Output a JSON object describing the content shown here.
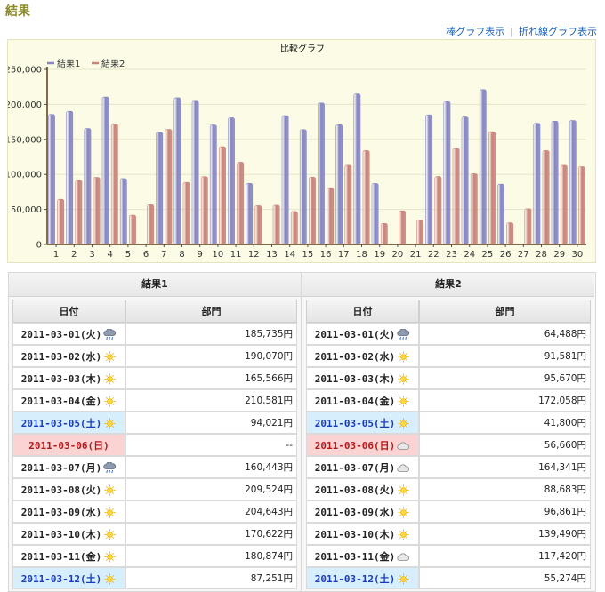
{
  "page": {
    "title": "結果"
  },
  "links": {
    "bar": "棒グラフ表示",
    "separator": "|",
    "line": "折れ線グラフ表示"
  },
  "chart_data": {
    "type": "bar",
    "title": "比較グラフ",
    "categories": [
      "1",
      "2",
      "3",
      "4",
      "5",
      "6",
      "7",
      "8",
      "9",
      "10",
      "11",
      "12",
      "13",
      "14",
      "15",
      "16",
      "17",
      "18",
      "19",
      "20",
      "21",
      "22",
      "23",
      "24",
      "25",
      "26",
      "27",
      "28",
      "29",
      "30"
    ],
    "series": [
      {
        "name": "結果1",
        "color": "#8585c4",
        "values": [
          185735,
          190070,
          165566,
          210581,
          94021,
          null,
          160443,
          209524,
          204643,
          170622,
          180874,
          87251,
          null,
          184000,
          164000,
          202000,
          171000,
          215000,
          87000,
          null,
          null,
          185000,
          204000,
          182000,
          221000,
          86000,
          null,
          173000,
          176000,
          177000
        ]
      },
      {
        "name": "結果2",
        "color": "#c8837a",
        "values": [
          64488,
          91581,
          95670,
          172058,
          41800,
          56660,
          164341,
          88683,
          96861,
          139490,
          117420,
          55274,
          56000,
          47000,
          96000,
          81000,
          113000,
          134000,
          30000,
          48000,
          35000,
          97000,
          137000,
          101000,
          161000,
          31000,
          51000,
          134000,
          113000,
          111000
        ]
      }
    ],
    "yticks": [
      "0",
      "50,000",
      "100,000",
      "150,000",
      "200,000",
      "250,000"
    ],
    "ylim": [
      0,
      250000
    ],
    "legend_position": "top-left",
    "grid": true
  },
  "tables": [
    {
      "title": "結果1",
      "headers": {
        "date": "日付",
        "dept": "部門"
      },
      "rows": [
        {
          "date": "2011-03-01(火)",
          "weather": "rain-icon",
          "value": "185,735円",
          "kind": "weekday"
        },
        {
          "date": "2011-03-02(水)",
          "weather": "sun-icon",
          "value": "190,070円",
          "kind": "weekday"
        },
        {
          "date": "2011-03-03(木)",
          "weather": "sun-icon",
          "value": "165,566円",
          "kind": "weekday"
        },
        {
          "date": "2011-03-04(金)",
          "weather": "sun-icon",
          "value": "210,581円",
          "kind": "weekday"
        },
        {
          "date": "2011-03-05(土)",
          "weather": "sun-icon",
          "value": "94,021円",
          "kind": "sat"
        },
        {
          "date": "2011-03-06(日)",
          "weather": "",
          "value": "--",
          "kind": "sun"
        },
        {
          "date": "2011-03-07(月)",
          "weather": "rain-icon",
          "value": "160,443円",
          "kind": "weekday"
        },
        {
          "date": "2011-03-08(火)",
          "weather": "sun-icon",
          "value": "209,524円",
          "kind": "weekday"
        },
        {
          "date": "2011-03-09(水)",
          "weather": "sun-icon",
          "value": "204,643円",
          "kind": "weekday"
        },
        {
          "date": "2011-03-10(木)",
          "weather": "sun-icon",
          "value": "170,622円",
          "kind": "weekday"
        },
        {
          "date": "2011-03-11(金)",
          "weather": "sun-icon",
          "value": "180,874円",
          "kind": "weekday"
        },
        {
          "date": "2011-03-12(土)",
          "weather": "sun-icon",
          "value": "87,251円",
          "kind": "sat"
        }
      ]
    },
    {
      "title": "結果2",
      "headers": {
        "date": "日付",
        "dept": "部門"
      },
      "rows": [
        {
          "date": "2011-03-01(火)",
          "weather": "rain-icon",
          "value": "64,488円",
          "kind": "weekday"
        },
        {
          "date": "2011-03-02(水)",
          "weather": "sun-icon",
          "value": "91,581円",
          "kind": "weekday"
        },
        {
          "date": "2011-03-03(木)",
          "weather": "sun-icon",
          "value": "95,670円",
          "kind": "weekday"
        },
        {
          "date": "2011-03-04(金)",
          "weather": "sun-icon",
          "value": "172,058円",
          "kind": "weekday"
        },
        {
          "date": "2011-03-05(土)",
          "weather": "sun-icon",
          "value": "41,800円",
          "kind": "sat"
        },
        {
          "date": "2011-03-06(日)",
          "weather": "cloud-icon",
          "value": "56,660円",
          "kind": "sun"
        },
        {
          "date": "2011-03-07(月)",
          "weather": "cloud-icon",
          "value": "164,341円",
          "kind": "weekday"
        },
        {
          "date": "2011-03-08(火)",
          "weather": "sun-icon",
          "value": "88,683円",
          "kind": "weekday"
        },
        {
          "date": "2011-03-09(水)",
          "weather": "sun-icon",
          "value": "96,861円",
          "kind": "weekday"
        },
        {
          "date": "2011-03-10(木)",
          "weather": "sun-icon",
          "value": "139,490円",
          "kind": "weekday"
        },
        {
          "date": "2011-03-11(金)",
          "weather": "cloud-icon",
          "value": "117,420円",
          "kind": "weekday"
        },
        {
          "date": "2011-03-12(土)",
          "weather": "sun-icon",
          "value": "55,274円",
          "kind": "sat"
        }
      ]
    }
  ]
}
